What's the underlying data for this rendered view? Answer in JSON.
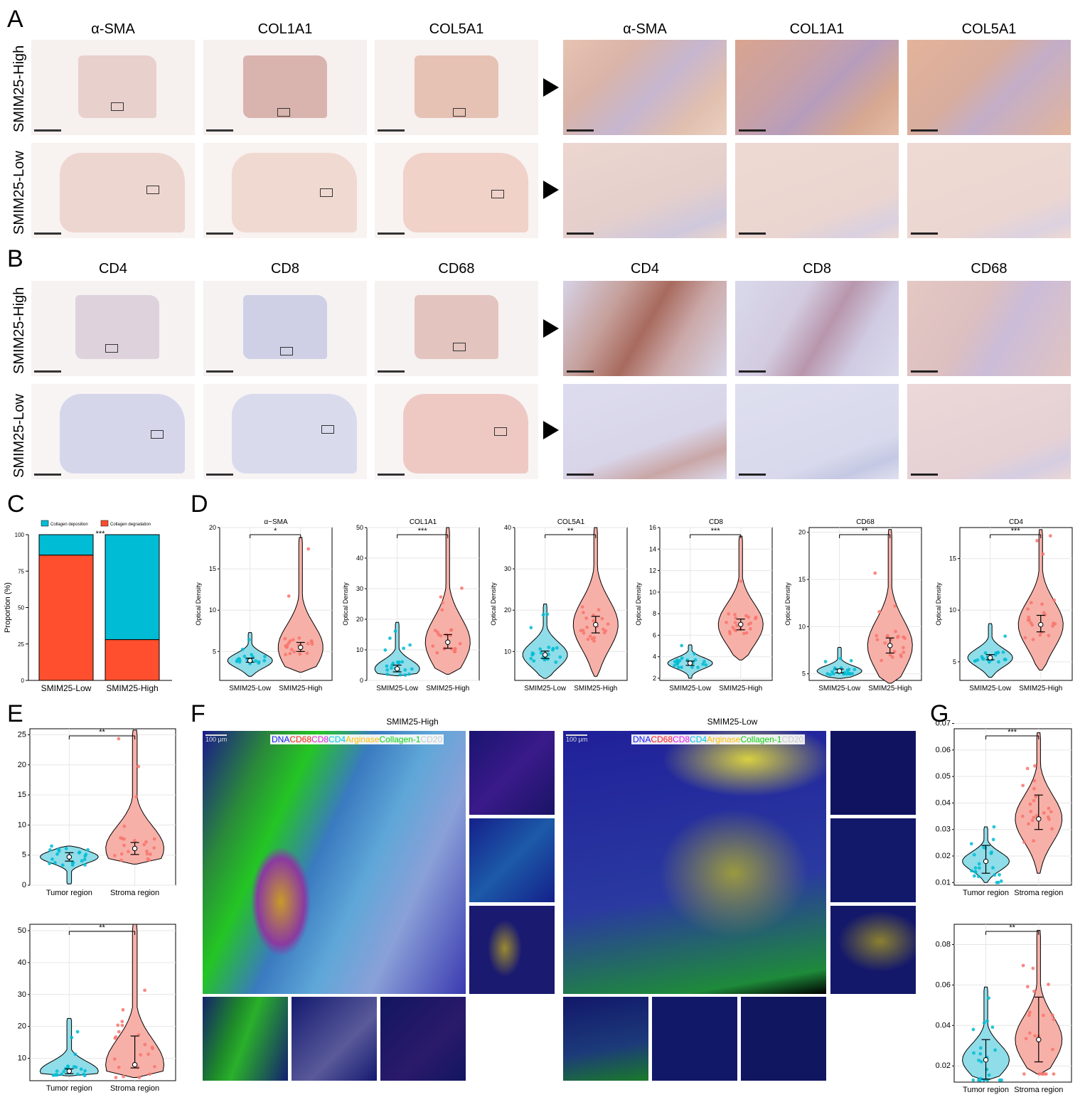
{
  "panels": {
    "a": "A",
    "b": "B",
    "c": "C",
    "d": "D",
    "e": "E",
    "f": "F",
    "g": "G"
  },
  "panelA": {
    "titles": [
      "α-SMA",
      "COL1A1",
      "COL5A1",
      "α-SMA",
      "COL1A1",
      "COL5A1"
    ],
    "rows": [
      "SMIM25-High",
      "SMIM25-Low"
    ]
  },
  "panelB": {
    "titles": [
      "CD4",
      "CD8",
      "CD68",
      "CD4",
      "CD8",
      "CD68"
    ],
    "rows": [
      "SMIM25-High",
      "SMIM25-Low"
    ]
  },
  "colors": {
    "low": "#00bcd4",
    "high": "#f8766d",
    "lowFill": "#8fdde9",
    "highFill": "#f7b0a8",
    "deposition": "#00bcd4",
    "degradation": "#ff4f2e",
    "dna": "#1a1aff",
    "cd68": "#ff2020",
    "cd8": "#e81ce8",
    "cd4": "#00c8e8",
    "arginase": "#ffc000",
    "collagen": "#10d010",
    "cd20": "#c8c8c8"
  },
  "panelF": {
    "left_title": "SMIM25-High",
    "right_title": "SMIM25-Low",
    "scale_text": "100 μm",
    "legend": [
      "DNA",
      "CD68",
      "CD8",
      "CD4",
      "Arginase",
      "Collagen-1",
      "CD20"
    ]
  },
  "chart_data": [
    {
      "id": "C",
      "type": "bar",
      "stacked": true,
      "categories": [
        "SMIM25-Low",
        "SMIM25-High"
      ],
      "series": [
        {
          "name": "Collagen deposition",
          "values": [
            14,
            72
          ]
        },
        {
          "name": "Collagen degradation",
          "values": [
            86,
            28
          ]
        }
      ],
      "ylabel": "Proportion (%)",
      "ylim": [
        0,
        100
      ],
      "yticks": [
        0,
        25,
        50,
        75,
        100
      ],
      "significance": "***",
      "legend_position": "top"
    },
    {
      "id": "D1",
      "type": "violin",
      "title": "α−SMA",
      "ylabel": "Optical Density",
      "categories": [
        "SMIM25-Low",
        "SMIM25-High"
      ],
      "ylim": [
        1.5,
        20
      ],
      "yticks": [
        5,
        10,
        15,
        20
      ],
      "significance": "*",
      "low": {
        "min": 2,
        "max": 7.3,
        "median": 3.9,
        "q1": 3.7,
        "q3": 4.2
      },
      "high": {
        "min": 2.5,
        "max": 18.8,
        "median": 5.5,
        "q1": 5.0,
        "q3": 6.1
      }
    },
    {
      "id": "D2",
      "type": "violin",
      "title": "COL1A1",
      "ylabel": "Optical Density",
      "categories": [
        "SMIM25-Low",
        "SMIM25-High"
      ],
      "ylim": [
        0,
        50
      ],
      "yticks": [
        0,
        10,
        20,
        30,
        40,
        50
      ],
      "significance": "***",
      "low": {
        "min": 1.5,
        "max": 19,
        "median": 3.8,
        "q1": 2.8,
        "q3": 5.0
      },
      "high": {
        "min": 2,
        "max": 50,
        "median": 12.5,
        "q1": 10.5,
        "q3": 15.0
      }
    },
    {
      "id": "D3",
      "type": "violin",
      "title": "COL5A1",
      "ylabel": "Optical Density",
      "categories": [
        "SMIM25-Low",
        "SMIM25-High"
      ],
      "ylim": [
        3,
        40
      ],
      "yticks": [
        10,
        20,
        30,
        40
      ],
      "significance": "**",
      "low": {
        "min": 3.5,
        "max": 21.5,
        "median": 9.2,
        "q1": 8.3,
        "q3": 10.1
      },
      "high": {
        "min": 4,
        "max": 40,
        "median": 16.5,
        "q1": 14.5,
        "q3": 18.5
      }
    },
    {
      "id": "D4",
      "type": "violin",
      "title": "CD8",
      "ylabel": "Optical Density",
      "categories": [
        "SMIM25-Low",
        "SMIM25-High"
      ],
      "ylim": [
        1.8,
        16
      ],
      "yticks": [
        2,
        4,
        6,
        8,
        10,
        12,
        14,
        16
      ],
      "significance": "***",
      "low": {
        "min": 2,
        "max": 5.1,
        "median": 3.4,
        "q1": 3.2,
        "q3": 3.6
      },
      "high": {
        "min": 3.7,
        "max": 15.2,
        "median": 7.0,
        "q1": 6.5,
        "q3": 7.5
      }
    },
    {
      "id": "D5",
      "type": "violin",
      "title": "CD68",
      "ylabel": "Optical Density",
      "categories": [
        "SMIM25-Low",
        "SMIM25-High"
      ],
      "ylim": [
        4.3,
        20.5
      ],
      "yticks": [
        5,
        10,
        15,
        20
      ],
      "significance": "**",
      "low": {
        "min": 4.5,
        "max": 7.8,
        "median": 5.3,
        "q1": 5.1,
        "q3": 5.5
      },
      "high": {
        "min": 4,
        "max": 20.3,
        "median": 8.0,
        "q1": 7.2,
        "q3": 8.8
      }
    },
    {
      "id": "D6",
      "type": "violin",
      "title": "CD4",
      "ylabel": "Optical Density",
      "categories": [
        "SMIM25-Low",
        "SMIM25-High"
      ],
      "ylim": [
        3.2,
        18
      ],
      "yticks": [
        5,
        10,
        15
      ],
      "significance": "***",
      "low": {
        "min": 3.5,
        "max": 8.7,
        "median": 5.4,
        "q1": 5.2,
        "q3": 5.7
      },
      "high": {
        "min": 4.2,
        "max": 17.8,
        "median": 8.6,
        "q1": 7.9,
        "q3": 9.5
      }
    },
    {
      "id": "E1",
      "type": "violin",
      "categories": [
        "Tumor region",
        "Stroma region"
      ],
      "ylim": [
        0,
        26
      ],
      "yticks": [
        0,
        5,
        10,
        15,
        20,
        25
      ],
      "significance": "**",
      "low": {
        "min": 0.2,
        "max": 6.5,
        "median": 4.7,
        "q1": 4.0,
        "q3": 5.4
      },
      "high": {
        "min": 3.5,
        "max": 25.8,
        "median": 6.1,
        "q1": 5.1,
        "q3": 7.1
      }
    },
    {
      "id": "E2",
      "type": "violin",
      "categories": [
        "Tumor region",
        "Stroma region"
      ],
      "ylim": [
        3,
        52
      ],
      "yticks": [
        10,
        20,
        30,
        40,
        50
      ],
      "significance": "**",
      "low": {
        "min": 4.5,
        "max": 22.5,
        "median": 6.0,
        "q1": 5.2,
        "q3": 6.7
      },
      "high": {
        "min": 4,
        "max": 52,
        "median": 8.0,
        "q1": 7.0,
        "q3": 17.0
      }
    },
    {
      "id": "G1",
      "type": "violin",
      "categories": [
        "Tumor region",
        "Stroma region"
      ],
      "ylim": [
        0.009,
        0.068
      ],
      "yticks": [
        0.01,
        0.02,
        0.03,
        0.04,
        0.05,
        0.06,
        0.07
      ],
      "significance": "***",
      "low": {
        "min": 0.01,
        "max": 0.031,
        "median": 0.018,
        "q1": 0.0135,
        "q3": 0.024
      },
      "high": {
        "min": 0.0135,
        "max": 0.0665,
        "median": 0.034,
        "q1": 0.03,
        "q3": 0.043
      }
    },
    {
      "id": "G2",
      "type": "violin",
      "categories": [
        "Tumor region",
        "Stroma region"
      ],
      "ylim": [
        0.012,
        0.09
      ],
      "yticks": [
        0.02,
        0.04,
        0.06,
        0.08
      ],
      "significance": "**",
      "low": {
        "min": 0.013,
        "max": 0.059,
        "median": 0.023,
        "q1": 0.0135,
        "q3": 0.033
      },
      "high": {
        "min": 0.016,
        "max": 0.087,
        "median": 0.033,
        "q1": 0.022,
        "q3": 0.054
      }
    }
  ]
}
